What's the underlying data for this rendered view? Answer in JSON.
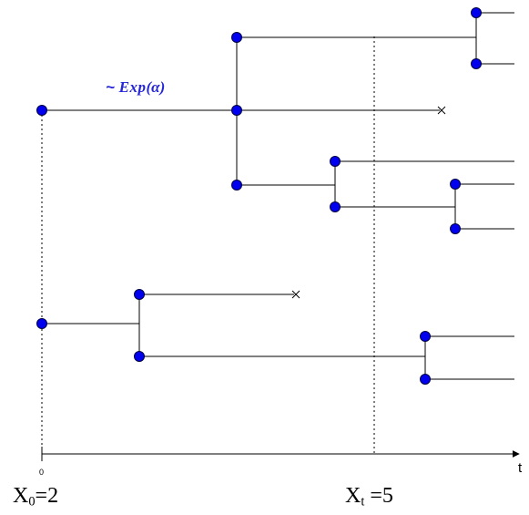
{
  "annotation": {
    "prefix": "~ ",
    "text": "Exp",
    "arg": "(α)",
    "color": "#2626d9"
  },
  "axis": {
    "t_label": "t",
    "origin_label": "0",
    "x0": {
      "sym": "X",
      "sub": "0",
      "rest": "=2"
    },
    "xt": {
      "sym": "X",
      "sub": "t",
      "rest": " =5"
    }
  },
  "colors": {
    "node_fill": "#0000ee",
    "node_stroke": "#000044",
    "line": "#000000"
  }
}
